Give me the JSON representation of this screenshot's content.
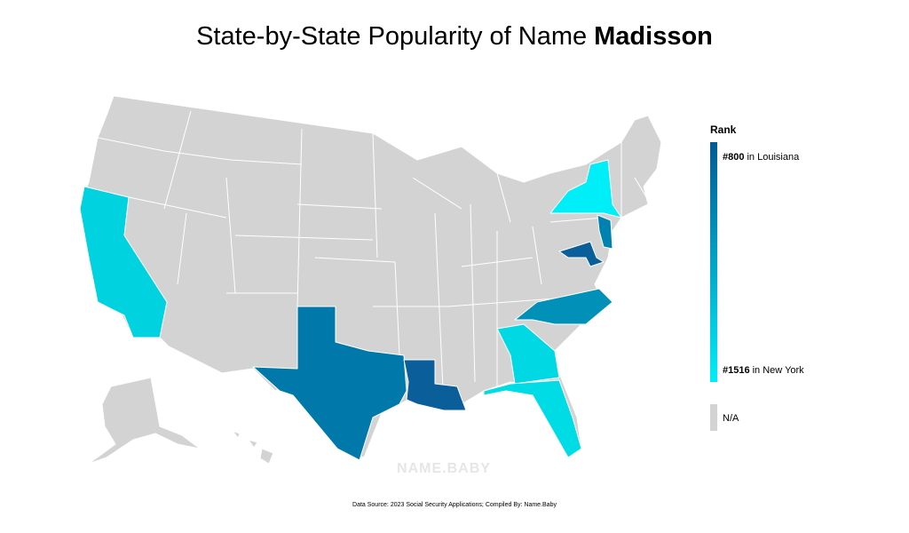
{
  "title": {
    "prefix": "State-by-State Popularity of Name",
    "name": "Madisson"
  },
  "legend": {
    "title": "Rank",
    "top": {
      "rank": "#800",
      "state": "in Louisiana"
    },
    "bottom": {
      "rank": "#1516",
      "state": "in New York"
    },
    "na": "N/A"
  },
  "watermark": "NAME.BABY",
  "source": "Data Source: 2023 Social Security Applications; Compiled By: Name.Baby"
}
